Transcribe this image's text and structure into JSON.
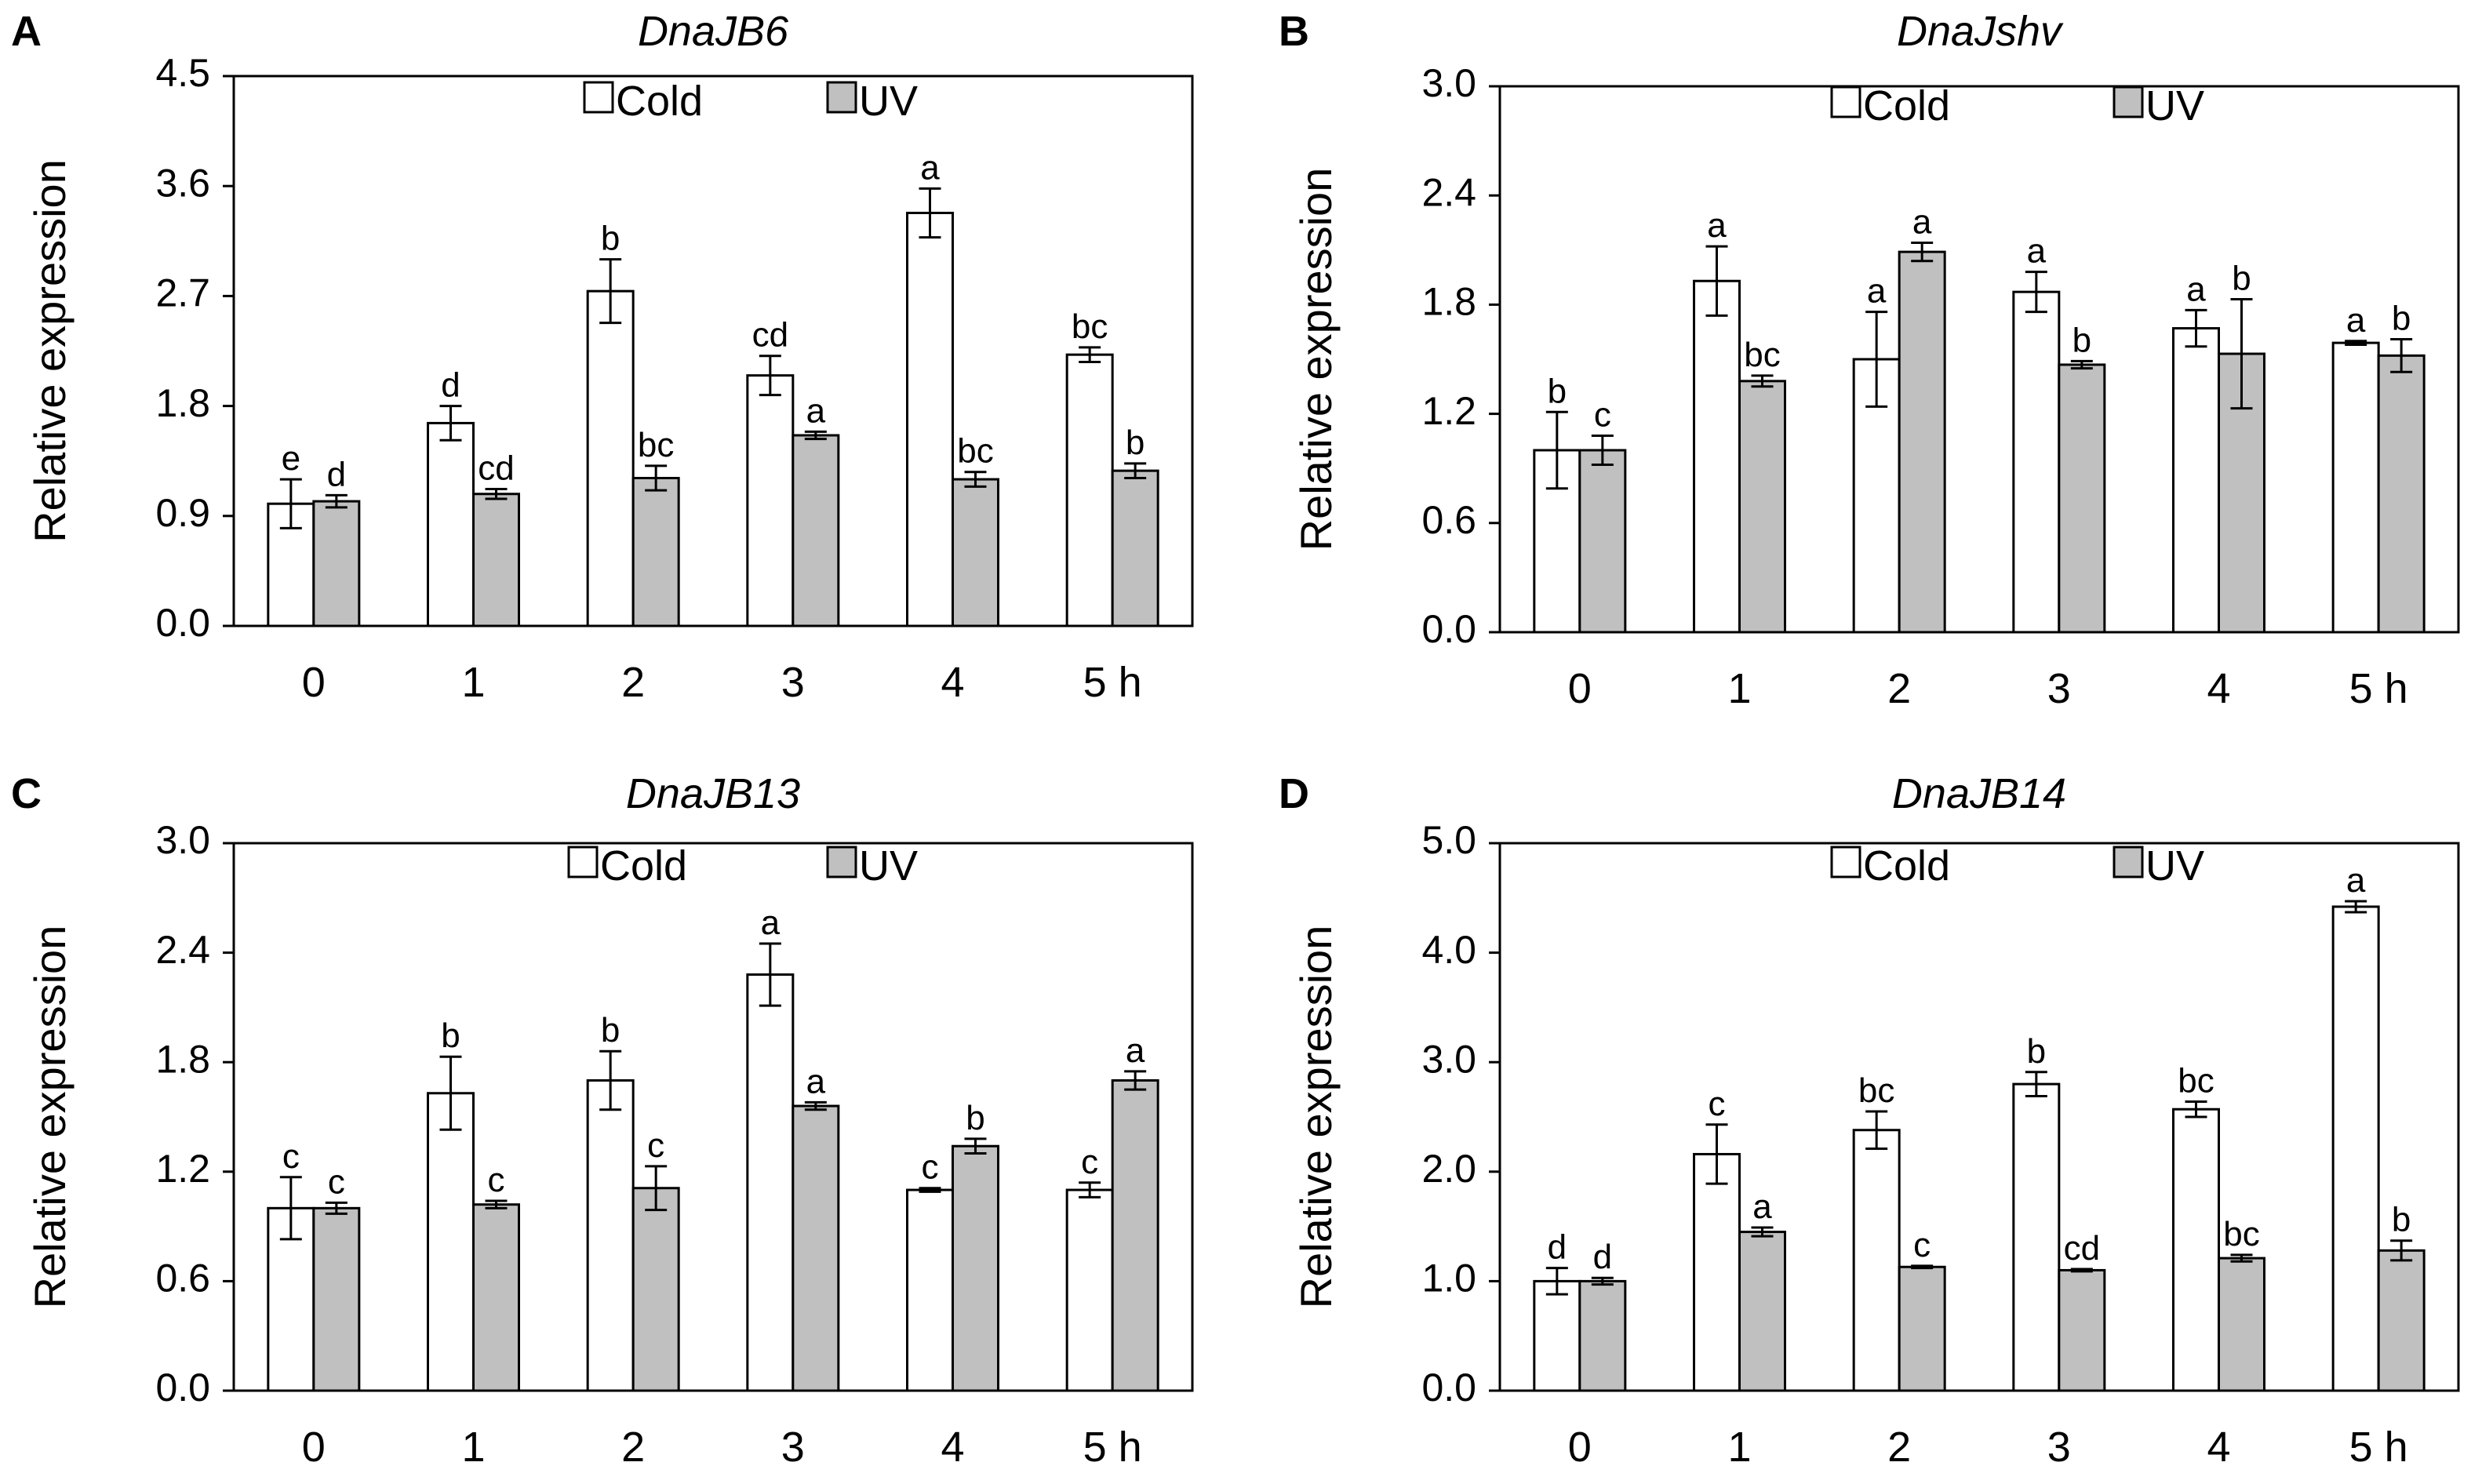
{
  "chart_data": [
    {
      "type": "bar",
      "panel": "A",
      "title": "DnaJB6",
      "ylabel": "Relative expression",
      "xlabel": "",
      "categories": [
        "0",
        "1",
        "2",
        "3",
        "4",
        "5 h"
      ],
      "ylim": [
        0,
        4.5
      ],
      "yticks": [
        "0.0",
        "0.9",
        "1.8",
        "2.7",
        "3.6",
        "4.5"
      ],
      "legend": [
        "Cold",
        "UV"
      ],
      "series": [
        {
          "name": "Cold",
          "color": "#ffffff",
          "values": [
            1.0,
            1.66,
            2.74,
            2.05,
            3.38,
            2.22
          ],
          "errors": [
            0.2,
            0.14,
            0.26,
            0.16,
            0.2,
            0.06
          ],
          "labels": [
            "e",
            "d",
            "b",
            "cd",
            "a",
            "bc"
          ]
        },
        {
          "name": "UV",
          "color": "#c0c0c0",
          "values": [
            1.02,
            1.08,
            1.21,
            1.56,
            1.2,
            1.27
          ],
          "errors": [
            0.05,
            0.04,
            0.1,
            0.03,
            0.06,
            0.06
          ],
          "labels": [
            "d",
            "cd",
            "bc",
            "a",
            "bc",
            "b"
          ]
        }
      ]
    },
    {
      "type": "bar",
      "panel": "B",
      "title": "DnaJshv",
      "ylabel": "Relative expression",
      "xlabel": "",
      "categories": [
        "0",
        "1",
        "2",
        "3",
        "4",
        "5 h"
      ],
      "ylim": [
        0,
        3.0
      ],
      "yticks": [
        "0.0",
        "0.6",
        "1.2",
        "1.8",
        "2.4",
        "3.0"
      ],
      "legend": [
        "Cold",
        "UV"
      ],
      "series": [
        {
          "name": "Cold",
          "color": "#ffffff",
          "values": [
            1.0,
            1.93,
            1.5,
            1.87,
            1.67,
            1.59
          ],
          "errors": [
            0.21,
            0.19,
            0.26,
            0.11,
            0.1,
            0.01
          ],
          "labels": [
            "b",
            "a",
            "a",
            "a",
            "a",
            "a"
          ]
        },
        {
          "name": "UV",
          "color": "#c0c0c0",
          "values": [
            1.0,
            1.38,
            2.09,
            1.47,
            1.53,
            1.52
          ],
          "errors": [
            0.08,
            0.03,
            0.05,
            0.02,
            0.3,
            0.09
          ],
          "labels": [
            "c",
            "bc",
            "a",
            "b",
            "b",
            "b"
          ]
        }
      ]
    },
    {
      "type": "bar",
      "panel": "C",
      "title": "DnaJB13",
      "ylabel": "Relative expression",
      "xlabel": "",
      "categories": [
        "0",
        "1",
        "2",
        "3",
        "4",
        "5 h"
      ],
      "ylim": [
        0,
        3.0
      ],
      "yticks": [
        "0.0",
        "0.6",
        "1.2",
        "1.8",
        "2.4",
        "3.0"
      ],
      "legend": [
        "Cold",
        "UV"
      ],
      "series": [
        {
          "name": "Cold",
          "color": "#ffffff",
          "values": [
            1.0,
            1.63,
            1.7,
            2.28,
            1.1,
            1.1
          ],
          "errors": [
            0.17,
            0.2,
            0.16,
            0.17,
            0.01,
            0.04
          ],
          "labels": [
            "c",
            "b",
            "b",
            "a",
            "c",
            "c"
          ]
        },
        {
          "name": "UV",
          "color": "#c0c0c0",
          "values": [
            1.0,
            1.02,
            1.11,
            1.56,
            1.34,
            1.7
          ],
          "errors": [
            0.03,
            0.02,
            0.12,
            0.02,
            0.04,
            0.05
          ],
          "labels": [
            "c",
            "c",
            "c",
            "a",
            "b",
            "a"
          ]
        }
      ]
    },
    {
      "type": "bar",
      "panel": "D",
      "title": "DnaJB14",
      "ylabel": "Relative expression",
      "xlabel": "",
      "categories": [
        "0",
        "1",
        "2",
        "3",
        "4",
        "5 h"
      ],
      "ylim": [
        0,
        5.0
      ],
      "yticks": [
        "0.0",
        "1.0",
        "2.0",
        "3.0",
        "4.0",
        "5.0"
      ],
      "legend": [
        "Cold",
        "UV"
      ],
      "series": [
        {
          "name": "Cold",
          "color": "#ffffff",
          "values": [
            1.0,
            2.16,
            2.38,
            2.8,
            2.57,
            4.42
          ],
          "errors": [
            0.12,
            0.27,
            0.17,
            0.11,
            0.07,
            0.05
          ],
          "labels": [
            "d",
            "c",
            "bc",
            "b",
            "bc",
            "a"
          ]
        },
        {
          "name": "UV",
          "color": "#c0c0c0",
          "values": [
            1.0,
            1.45,
            1.13,
            1.1,
            1.21,
            1.28
          ],
          "errors": [
            0.03,
            0.04,
            0.01,
            0.01,
            0.03,
            0.09
          ],
          "labels": [
            "d",
            "a",
            "c",
            "cd",
            "bc",
            "b"
          ]
        }
      ]
    }
  ]
}
